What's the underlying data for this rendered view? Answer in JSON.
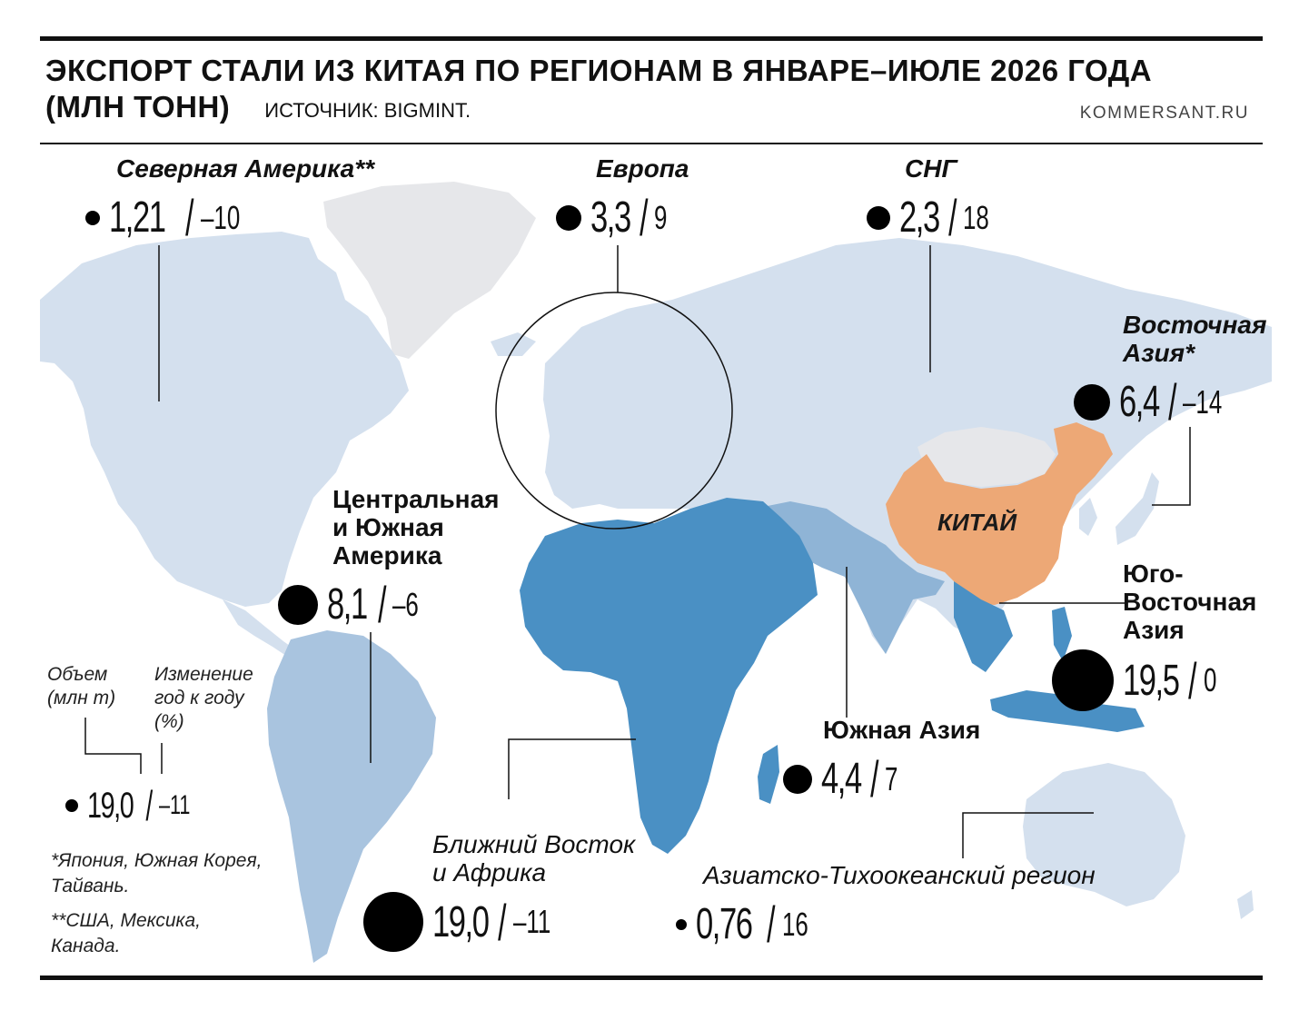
{
  "title_line1": "ЭКСПОРТ СТАЛИ ИЗ КИТАЯ ПО РЕГИОНАМ В ЯНВАРЕ–ИЮЛЕ 2026 ГОДА",
  "title_line2": "(МЛН ТОНН)",
  "source": "ИСТОЧНИК: BIGMINT.",
  "brand": "KOMMERSANT.RU",
  "china_label": "КИТАЙ",
  "colors": {
    "land": "#d4e0ee",
    "greenland": "#e6e7ea",
    "china": "#eda876",
    "mideast_africa": "#4a90c4",
    "latam": "#a9c4df",
    "se_asia": "#4a90c4",
    "south_asia": "#8fb4d6",
    "border": "#ffffff"
  },
  "regions": [
    {
      "id": "north-america",
      "name": "Северная Америка**",
      "volume": "1,21",
      "change": "–10"
    },
    {
      "id": "europe",
      "name": "Европа",
      "volume": "3,3",
      "change": "9"
    },
    {
      "id": "cis",
      "name": "СНГ",
      "volume": "2,3",
      "change": "18"
    },
    {
      "id": "east-asia",
      "name": "Восточная Азия*",
      "volume": "6,4",
      "change": "–14"
    },
    {
      "id": "latam",
      "name": "Центральная и Южная Америка",
      "volume": "8,1",
      "change": "–6"
    },
    {
      "id": "se-asia",
      "name": "Юго-Восточная Азия",
      "volume": "19,5",
      "change": "0"
    },
    {
      "id": "south-asia",
      "name": "Южная Азия",
      "volume": "4,4",
      "change": "7"
    },
    {
      "id": "mideast-africa",
      "name": "Ближний Восток и Африка",
      "volume": "19,0",
      "change": "–11"
    },
    {
      "id": "apac",
      "name": "Азиатско-Тихоокеанский регион",
      "volume": "0,76",
      "change": "16"
    }
  ],
  "legend": {
    "volume_label": "Объем (млн т)",
    "change_label": "Изменение год к году (%)",
    "example_volume": "19,0",
    "example_change": "–11"
  },
  "notes": [
    "*Япония, Южная Корея, Тайвань.",
    "**США, Мексика, Канада."
  ]
}
